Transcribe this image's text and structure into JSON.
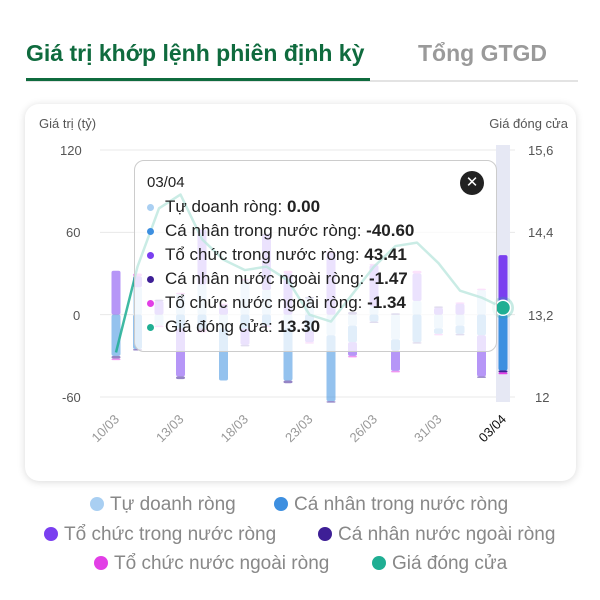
{
  "tabs": [
    {
      "label": "Giá trị khớp lệnh phiên định kỳ"
    },
    {
      "label": "Tổng GTGD"
    }
  ],
  "axis": {
    "left_title": "Giá trị (tỷ)",
    "right_title": "Giá đóng cửa",
    "left_ticks": [
      "120",
      "60",
      "0",
      "-60"
    ],
    "right_ticks": [
      "15,6",
      "14,4",
      "13,2",
      "12"
    ]
  },
  "colors": {
    "td": "#a9cff2",
    "cn": "#3d8fe0",
    "tc": "#7a3ff0",
    "cnnn": "#3e1f96",
    "tcnn": "#e23fe6",
    "price": "#1fae93"
  },
  "tooltip": {
    "date": "03/04",
    "close": "✕",
    "rows": [
      {
        "label": "Tự doanh ròng: ",
        "value": "0.00",
        "color": "#a9cff2"
      },
      {
        "label": "Cá nhân trong nước ròng: ",
        "value": "-40.60",
        "color": "#3d8fe0"
      },
      {
        "label": "Tổ chức trong nước ròng: ",
        "value": "43.41",
        "color": "#7a3ff0"
      },
      {
        "label": "Cá nhân nước ngoài ròng: ",
        "value": "-1.47",
        "color": "#3e1f96"
      },
      {
        "label": "Tổ chức nước ngoài ròng: ",
        "value": "-1.34",
        "color": "#e23fe6"
      },
      {
        "label": "Giá đóng cửa: ",
        "value": "13.30",
        "color": "#1fae93"
      }
    ]
  },
  "legend": [
    "Tự doanh ròng",
    "Cá nhân trong nước ròng",
    "Tổ chức trong nước ròng",
    "Cá nhân nước ngoài ròng",
    "Tổ chức nước ngoài ròng",
    "Giá đóng cửa"
  ],
  "chart_data": {
    "type": "bar",
    "ylim": [
      -60,
      120
    ],
    "y2lim": [
      12,
      15.6
    ],
    "x_labels": [
      "10/03",
      "13/03",
      "18/03",
      "23/03",
      "26/03",
      "31/03",
      "03/04"
    ],
    "label_idx": [
      0,
      3,
      6,
      9,
      12,
      15,
      18
    ],
    "selected_idx": 18,
    "series": [
      {
        "name": "Tự doanh ròng",
        "values": [
          0,
          20,
          -8,
          15,
          22,
          -10,
          25,
          18,
          -10,
          12,
          -15,
          -8,
          6,
          -18,
          10,
          -10,
          -8,
          18,
          0
        ]
      },
      {
        "name": "Cá nhân trong nước ròng",
        "values": [
          -30,
          -25,
          0,
          -10,
          -10,
          -38,
          -10,
          -8,
          -38,
          -12,
          -48,
          -12,
          -5,
          -8,
          -20,
          -4,
          -6,
          -15,
          -40.6
        ]
      },
      {
        "name": "Tổ chức trong nước ròng",
        "values": [
          32,
          8,
          10,
          -35,
          40,
          5,
          -12,
          40,
          30,
          -8,
          45,
          -10,
          30,
          -15,
          20,
          5,
          8,
          -30,
          43.41
        ]
      },
      {
        "name": "Cá nhân nước ngoài ròng",
        "values": [
          -2,
          -1,
          1,
          -2,
          -1,
          2,
          -1,
          1,
          -2,
          1,
          -1,
          2,
          -1,
          1,
          -1,
          1,
          -1,
          -1,
          -1.47
        ]
      },
      {
        "name": "Tổ chức nước ngoài ròng",
        "values": [
          -1,
          2,
          -1,
          1,
          -2,
          1,
          1,
          -1,
          2,
          -1,
          1,
          -1,
          1,
          -1,
          2,
          -1,
          1,
          1,
          -1.34
        ]
      },
      {
        "name": "Giá đóng cửa",
        "values": [
          12.65,
          13.9,
          14.75,
          14.95,
          14.3,
          14.0,
          13.85,
          13.9,
          13.7,
          13.2,
          13.1,
          13.5,
          13.9,
          14.2,
          14.25,
          13.95,
          13.55,
          13.45,
          13.3
        ]
      }
    ]
  }
}
